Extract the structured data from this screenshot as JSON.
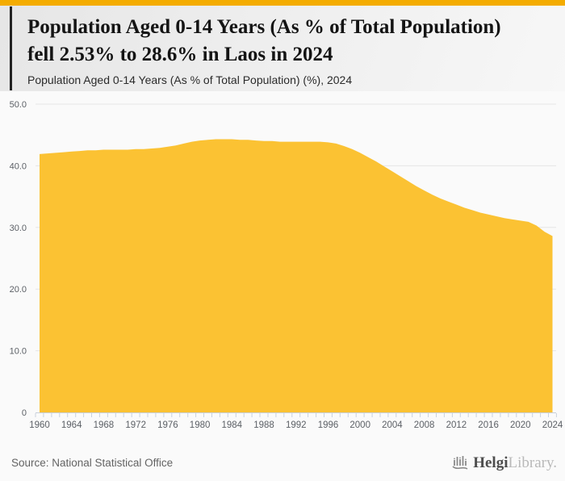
{
  "header": {
    "title_line1": "Population Aged 0-14 Years (As % of Total Population)",
    "title_line2": "fell 2.53% to 28.6% in Laos in 2024",
    "subtitle": "Population Aged 0-14 Years (As % of Total Population) (%), 2024"
  },
  "footer": {
    "source": "Source: National Statistical Office",
    "logo_primary": "Helgi",
    "logo_secondary": "Library.",
    "logo_icon": "helgi-organ-bars-icon"
  },
  "colors": {
    "top_bar": "#F4AC00",
    "area_fill": "#FBC233",
    "grid_line": "#e6e6e6",
    "axis_line": "#c9cfd8",
    "tick_mark": "#c9d2de",
    "tick_text": "#5c6066",
    "title_text": "#141414",
    "source_text": "#636363",
    "logo_icon": "#8a8a8a"
  },
  "chart_data": {
    "type": "area",
    "title": "Population Aged 0-14 Years (As % of Total Population) fell 2.53% to 28.6% in Laos in 2024",
    "subtitle": "Population Aged 0-14 Years (As % of Total Population) (%), 2024",
    "xlabel": "",
    "ylabel": "",
    "unit": "%",
    "grid": true,
    "legend": false,
    "xlim": [
      1959.5,
      2024.5
    ],
    "ylim": [
      0,
      50
    ],
    "ytick_values": [
      50,
      40,
      30,
      20,
      10,
      0
    ],
    "ytick_labels": [
      "50.0",
      "40.0",
      "30.0",
      "20.0",
      "10.0",
      "0"
    ],
    "xtick_labels": [
      1960,
      1964,
      1968,
      1972,
      1976,
      1980,
      1984,
      1988,
      1992,
      1996,
      2000,
      2004,
      2008,
      2012,
      2016,
      2020,
      2024
    ],
    "x": [
      1960,
      1961,
      1962,
      1963,
      1964,
      1965,
      1966,
      1967,
      1968,
      1969,
      1970,
      1971,
      1972,
      1973,
      1974,
      1975,
      1976,
      1977,
      1978,
      1979,
      1980,
      1981,
      1982,
      1983,
      1984,
      1985,
      1986,
      1987,
      1988,
      1989,
      1990,
      1991,
      1992,
      1993,
      1994,
      1995,
      1996,
      1997,
      1998,
      1999,
      2000,
      2001,
      2002,
      2003,
      2004,
      2005,
      2006,
      2007,
      2008,
      2009,
      2010,
      2011,
      2012,
      2013,
      2014,
      2015,
      2016,
      2017,
      2018,
      2019,
      2020,
      2021,
      2022,
      2023,
      2024
    ],
    "values": [
      41.9,
      42.0,
      42.1,
      42.2,
      42.3,
      42.4,
      42.5,
      42.5,
      42.6,
      42.6,
      42.6,
      42.6,
      42.7,
      42.7,
      42.8,
      42.9,
      43.1,
      43.3,
      43.6,
      43.9,
      44.1,
      44.2,
      44.3,
      44.3,
      44.3,
      44.2,
      44.2,
      44.1,
      44.0,
      44.0,
      43.9,
      43.9,
      43.9,
      43.9,
      43.9,
      43.9,
      43.8,
      43.6,
      43.2,
      42.7,
      42.1,
      41.4,
      40.7,
      39.9,
      39.1,
      38.3,
      37.5,
      36.7,
      36.0,
      35.3,
      34.7,
      34.2,
      33.7,
      33.2,
      32.8,
      32.4,
      32.1,
      31.8,
      31.5,
      31.3,
      31.1,
      30.9,
      30.3,
      29.3,
      28.6
    ],
    "last_point": {
      "year": 2024,
      "value": 28.6,
      "change_pct": "-2.53%"
    }
  }
}
